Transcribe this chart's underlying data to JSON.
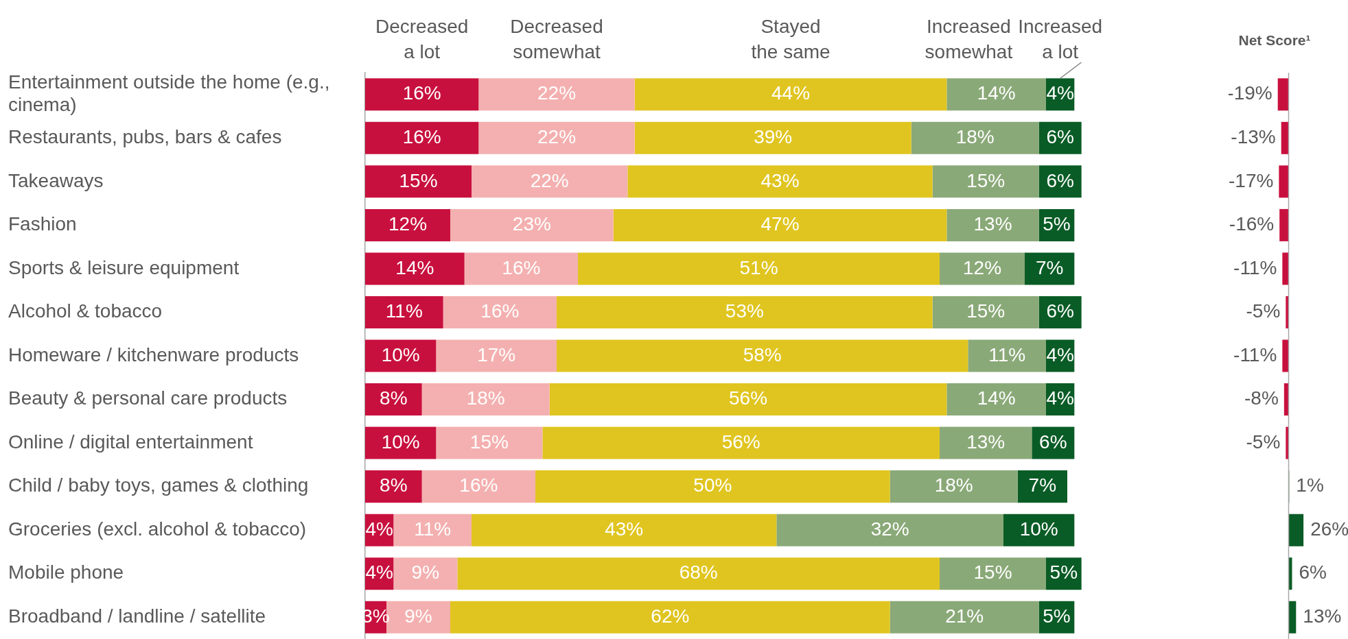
{
  "chart_data": [
    {
      "type": "bar",
      "orientation": "horizontal",
      "stacked": true,
      "legend": "top",
      "tick_labels": "y",
      "categories": [
        "Entertainment outside the home (e.g., cinema)",
        "Restaurants, pubs, bars & cafes",
        "Takeaways",
        "Fashion",
        "Sports & leisure equipment",
        "Alcohol & tobacco",
        "Homeware / kitchenware products",
        "Beauty & personal care products",
        "Online / digital entertainment",
        "Child / baby toys, games & clothing",
        "Groceries (excl. alcohol & tobacco)",
        "Mobile phone",
        "Broadband / landline / satellite"
      ],
      "series": [
        {
          "name": "Decreased a lot",
          "color": "#c8103e",
          "values": [
            16,
            16,
            15,
            12,
            14,
            11,
            10,
            8,
            10,
            8,
            4,
            4,
            3
          ],
          "value_labels": [
            "16%",
            "16%",
            "15%",
            "12%",
            "14%",
            "11%",
            "10%",
            "8%",
            "10%",
            "8%",
            "4%",
            "4%",
            "3%"
          ]
        },
        {
          "name": "Decreased somewhat",
          "color": "#f4b0b0",
          "values": [
            22,
            22,
            22,
            23,
            16,
            16,
            17,
            18,
            15,
            16,
            11,
            9,
            9
          ],
          "value_labels": [
            "22%",
            "22%",
            "22%",
            "23%",
            "16%",
            "16%",
            "17%",
            "18%",
            "15%",
            "16%",
            "11%",
            "9%",
            "9%"
          ]
        },
        {
          "name": "Stayed the same",
          "color": "#e0c520",
          "values": [
            44,
            39,
            43,
            47,
            51,
            53,
            58,
            56,
            56,
            50,
            43,
            68,
            62
          ],
          "value_labels": [
            "44%",
            "39%",
            "43%",
            "47%",
            "51%",
            "53%",
            "58%",
            "56%",
            "56%",
            "50%",
            "43%",
            "68%",
            "62%"
          ]
        },
        {
          "name": "Increased somewhat",
          "color": "#8aa978",
          "values": [
            14,
            18,
            15,
            13,
            12,
            15,
            11,
            14,
            13,
            18,
            32,
            15,
            21
          ],
          "value_labels": [
            "14%",
            "18%",
            "15%",
            "13%",
            "12%",
            "15%",
            "11%",
            "14%",
            "13%",
            "18%",
            "32%",
            "15%",
            "21%"
          ]
        },
        {
          "name": "Increased a lot",
          "color": "#0a5c26",
          "values": [
            4,
            6,
            6,
            5,
            7,
            6,
            4,
            4,
            6,
            7,
            10,
            5,
            5
          ],
          "value_labels": [
            "4%",
            "6%",
            "6%",
            "5%",
            "7%",
            "6%",
            "4%",
            "4%",
            "6%",
            "7%",
            "10%",
            "5%",
            "5%"
          ]
        }
      ]
    },
    {
      "type": "bar",
      "orientation": "horizontal",
      "title": "Net Score¹",
      "tick_labels": false,
      "categories": [
        null,
        null,
        null,
        null,
        null,
        null,
        null,
        null,
        null,
        null,
        null,
        null,
        null
      ],
      "values": [
        -19,
        -13,
        -17,
        -16,
        -11,
        -5,
        -11,
        -8,
        -5,
        1,
        26,
        6,
        13
      ],
      "value_labels": [
        "-19%",
        "-13%",
        "-17%",
        "-16%",
        "-11%",
        "-5%",
        "-11%",
        "-8%",
        "-5%",
        "1%",
        "26%",
        "6%",
        "13%"
      ],
      "colors": [
        "#c8103e",
        "#c8103e",
        "#c8103e",
        "#c8103e",
        "#c8103e",
        "#c8103e",
        "#c8103e",
        "#c8103e",
        "#c8103e",
        "#0a5c26",
        "#0a5c26",
        "#0a5c26",
        "#0a5c26"
      ]
    }
  ]
}
